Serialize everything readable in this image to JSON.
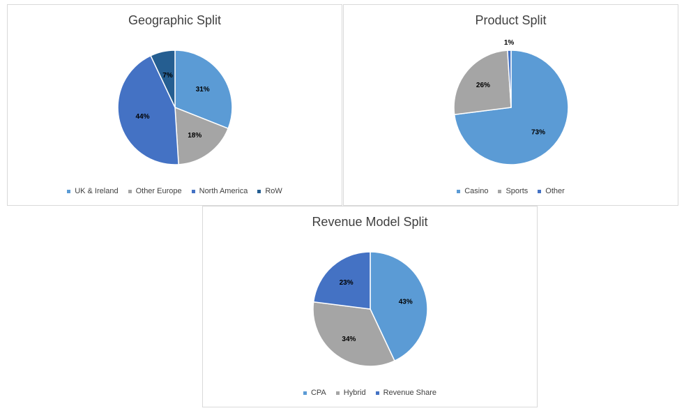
{
  "chart_data": [
    {
      "type": "pie",
      "title": "Geographic Split",
      "categories": [
        "UK & Ireland",
        "Other Europe",
        "North America",
        "RoW"
      ],
      "values": [
        31,
        18,
        44,
        7
      ],
      "labels": [
        "31%",
        "18%",
        "44%",
        "7%"
      ],
      "colors": [
        "#5B9BD5",
        "#A5A5A5",
        "#4472C4",
        "#255E91"
      ],
      "legend": "bottom"
    },
    {
      "type": "pie",
      "title": "Product Split",
      "categories": [
        "Casino",
        "Sports",
        "Other"
      ],
      "values": [
        73,
        26,
        1
      ],
      "labels": [
        "73%",
        "26%",
        "1%"
      ],
      "colors": [
        "#5B9BD5",
        "#A5A5A5",
        "#4472C4"
      ],
      "legend": "bottom"
    },
    {
      "type": "pie",
      "title": "Revenue Model Split",
      "categories": [
        "CPA",
        "Hybrid",
        "Revenue Share"
      ],
      "values": [
        43,
        34,
        23
      ],
      "labels": [
        "43%",
        "34%",
        "23%"
      ],
      "colors": [
        "#5B9BD5",
        "#A5A5A5",
        "#4472C4"
      ],
      "legend": "bottom"
    }
  ]
}
